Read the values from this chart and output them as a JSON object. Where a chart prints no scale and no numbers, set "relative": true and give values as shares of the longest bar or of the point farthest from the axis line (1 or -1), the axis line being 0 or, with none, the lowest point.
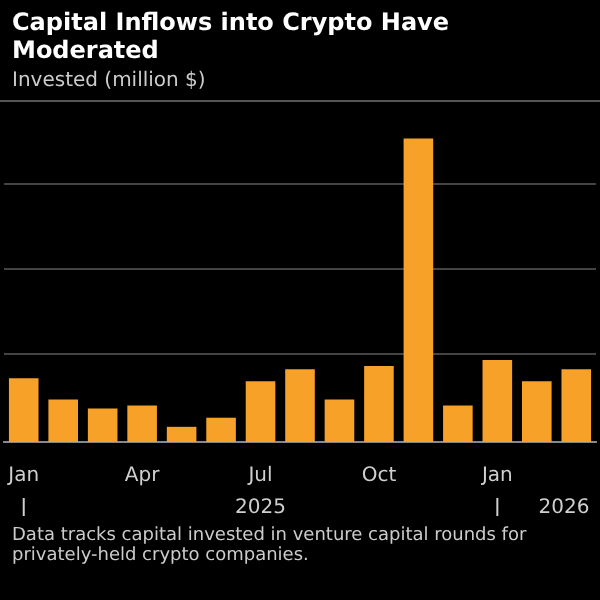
{
  "chart_data": {
    "type": "bar",
    "title": "Capital Inflows into Crypto Have Moderated",
    "subtitle": "Invested (million $)",
    "categories": [
      "Jan",
      null,
      null,
      "Apr",
      null,
      null,
      "Jul",
      null,
      null,
      "Oct",
      null,
      null,
      "Jan",
      null,
      null
    ],
    "values": [
      0.21,
      0.14,
      0.11,
      0.12,
      0.05,
      0.08,
      0.2,
      0.24,
      0.14,
      0.25,
      1,
      0.12,
      0.27,
      0.2,
      0.24
    ],
    "color": "#f7a128",
    "relative": true,
    "grid": "y",
    "annotations": [
      "2025",
      "2026",
      "Data tracks capital invested in venture capital rounds for privately-held crypto companies."
    ]
  }
}
